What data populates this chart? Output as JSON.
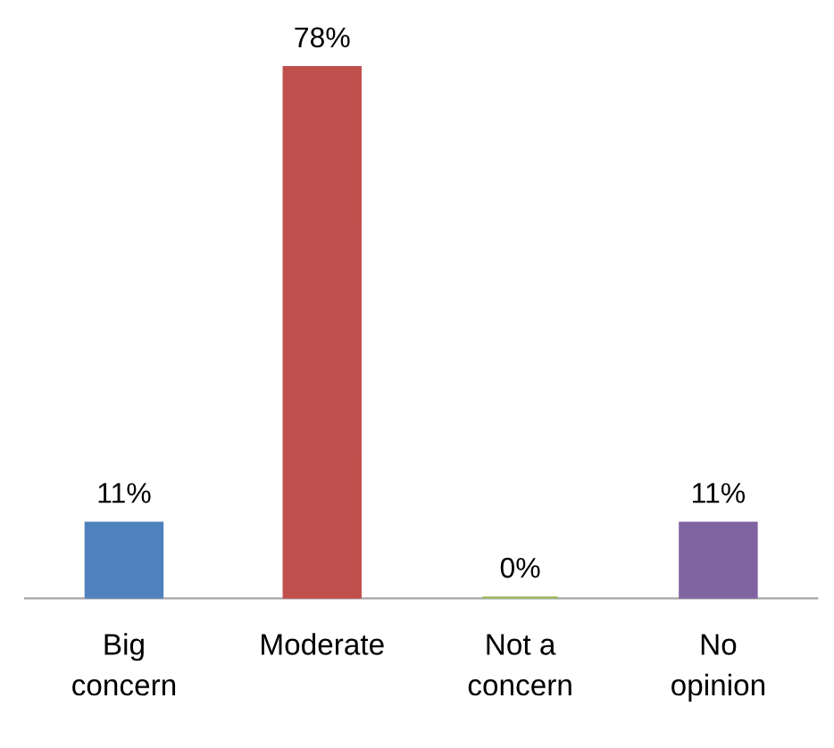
{
  "chart_data": {
    "type": "bar",
    "categories": [
      "Big\nconcern",
      "Moderate",
      "Not a\nconcern",
      "No\nopinion"
    ],
    "values": [
      11,
      78,
      0,
      11
    ],
    "colors": [
      "#4f81bd",
      "#c0504d",
      "#9bbb59",
      "#8064a2"
    ],
    "value_labels": [
      "11%",
      "78%",
      "0%",
      "11%"
    ]
  }
}
